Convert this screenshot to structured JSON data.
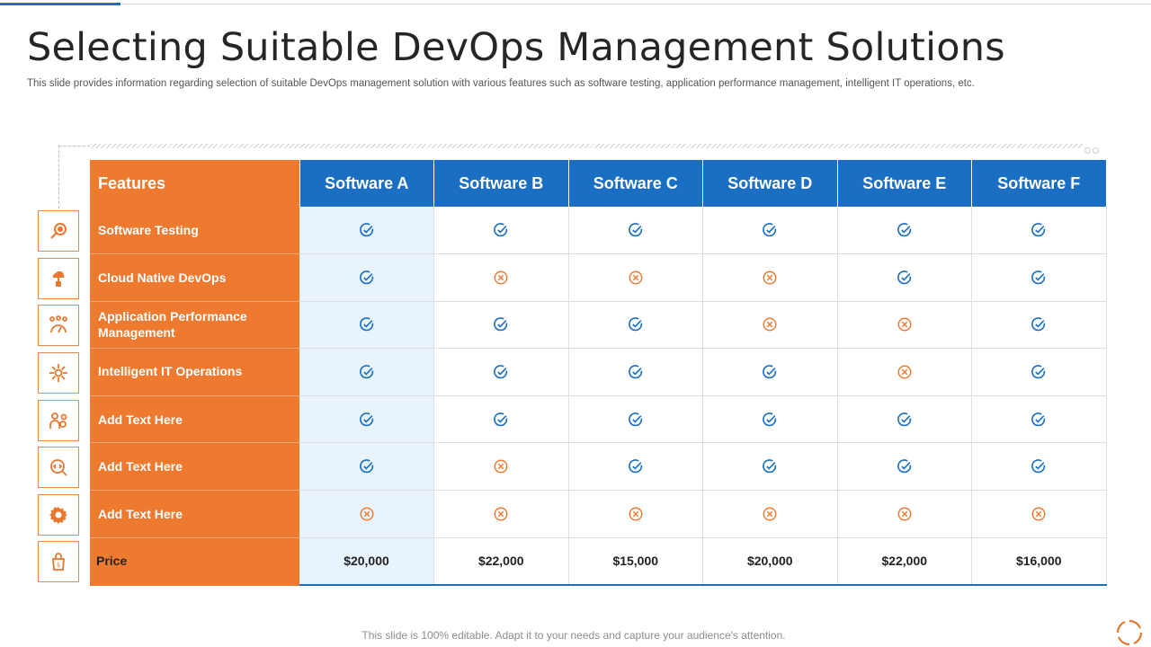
{
  "slide": {
    "title": "Selecting Suitable DevOps Management Solutions",
    "subtitle": "This slide provides information regarding selection of suitable DevOps management solution with various features such as software testing, application performance management, intelligent IT operations, etc.",
    "footer": "This slide is 100% editable. Adapt it to your needs and capture your audience's attention."
  },
  "table": {
    "features_header": "Features",
    "software": [
      "Software A",
      "Software B",
      "Software C",
      "Software D",
      "Software E",
      "Software F"
    ],
    "rows": [
      {
        "feature": "Software Testing",
        "icon": "magnifier-icon",
        "marks": [
          "yes",
          "yes",
          "yes",
          "yes",
          "yes",
          "yes"
        ]
      },
      {
        "feature": "Cloud Native DevOps",
        "icon": "cloud-server-icon",
        "marks": [
          "yes",
          "no",
          "no",
          "no",
          "yes",
          "yes"
        ]
      },
      {
        "feature": "Application Performance Management",
        "icon": "team-gauge-icon",
        "marks": [
          "yes",
          "yes",
          "yes",
          "no",
          "no",
          "yes"
        ]
      },
      {
        "feature": "Intelligent IT Operations",
        "icon": "network-gear-icon",
        "marks": [
          "yes",
          "yes",
          "yes",
          "yes",
          "no",
          "yes"
        ]
      },
      {
        "feature": "Add  Text Here",
        "icon": "gears-person-icon",
        "marks": [
          "yes",
          "yes",
          "yes",
          "yes",
          "yes",
          "yes"
        ]
      },
      {
        "feature": "Add  Text Here",
        "icon": "code-search-icon",
        "marks": [
          "yes",
          "no",
          "yes",
          "yes",
          "yes",
          "yes"
        ]
      },
      {
        "feature": "Add  Text Here",
        "icon": "cog-icon",
        "marks": [
          "no",
          "no",
          "no",
          "no",
          "no",
          "no"
        ]
      }
    ],
    "price_label": "Price",
    "prices": [
      "$20,000",
      "$22,000",
      "$15,000",
      "$20,000",
      "$22,000",
      "$16,000"
    ]
  },
  "colors": {
    "orange": "#ee7a30",
    "blue": "#1b6fc3",
    "check": "#1b6fc3",
    "cross": "#ee7a30"
  }
}
